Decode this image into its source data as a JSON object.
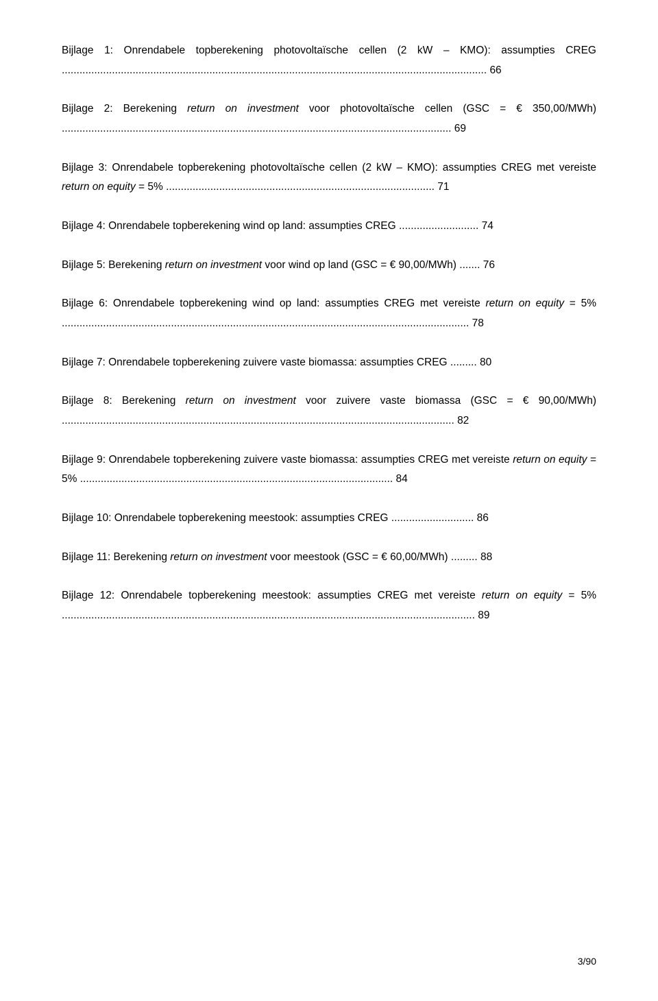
{
  "entries": [
    {
      "prefix": "Bijlage 1: Onrendabele topberekening photovoltaïsche cellen (2 kW – KMO): assumpties CREG",
      "italic": "",
      "suffix": "",
      "dots": "................................................................................................................................................",
      "page": "66"
    },
    {
      "prefix": "Bijlage 2: Berekening ",
      "italic": "return on investment",
      "suffix": " voor photovoltaïsche cellen (GSC = € 350,00/MWh)",
      "dots": "....................................................................................................................................",
      "page": "69"
    },
    {
      "prefix": "Bijlage 3: Onrendabele topberekening photovoltaïsche cellen (2 kW – KMO): assumpties CREG met vereiste ",
      "italic": "return on equity",
      "suffix": " = 5%",
      "dots": "...........................................................................................",
      "page": "71"
    },
    {
      "prefix": "Bijlage 4: Onrendabele topberekening wind op land: assumpties CREG",
      "italic": "",
      "suffix": "",
      "dots": "...........................",
      "page": "74"
    },
    {
      "prefix": "Bijlage 5: Berekening ",
      "italic": "return on investment",
      "suffix": " voor wind op land (GSC = € 90,00/MWh)",
      "dots": ".......",
      "page": "76"
    },
    {
      "prefix": "Bijlage 6: Onrendabele topberekening wind op land: assumpties CREG met vereiste ",
      "italic": "return on equity",
      "suffix": " = 5%",
      "dots": "..........................................................................................................................................",
      "page": "78"
    },
    {
      "prefix": "Bijlage 7: Onrendabele topberekening zuivere vaste biomassa: assumpties CREG",
      "italic": "",
      "suffix": "",
      "dots": ".........",
      "page": "80"
    },
    {
      "prefix": "Bijlage 8: Berekening ",
      "italic": "return on investment",
      "suffix": " voor zuivere vaste biomassa (GSC = € 90,00/MWh)",
      "dots": ".....................................................................................................................................",
      "page": "82"
    },
    {
      "prefix": "Bijlage 9: Onrendabele topberekening zuivere vaste biomassa: assumpties CREG met vereiste ",
      "italic": "return on equity",
      "suffix": " = 5%",
      "dots": "..........................................................................................................",
      "page": "84"
    },
    {
      "prefix": "Bijlage 10: Onrendabele topberekening meestook: assumpties CREG",
      "italic": "",
      "suffix": "",
      "dots": "............................",
      "page": "86"
    },
    {
      "prefix": "Bijlage 11: Berekening ",
      "italic": "return on investment",
      "suffix": " voor meestook (GSC = € 60,00/MWh)",
      "dots": ".........",
      "page": "88"
    },
    {
      "prefix": "Bijlage 12: Onrendabele topberekening meestook: assumpties CREG met vereiste ",
      "italic": "return on equity",
      "suffix": " = 5%",
      "dots": "............................................................................................................................................",
      "page": "89"
    }
  ],
  "footer": "3/90"
}
